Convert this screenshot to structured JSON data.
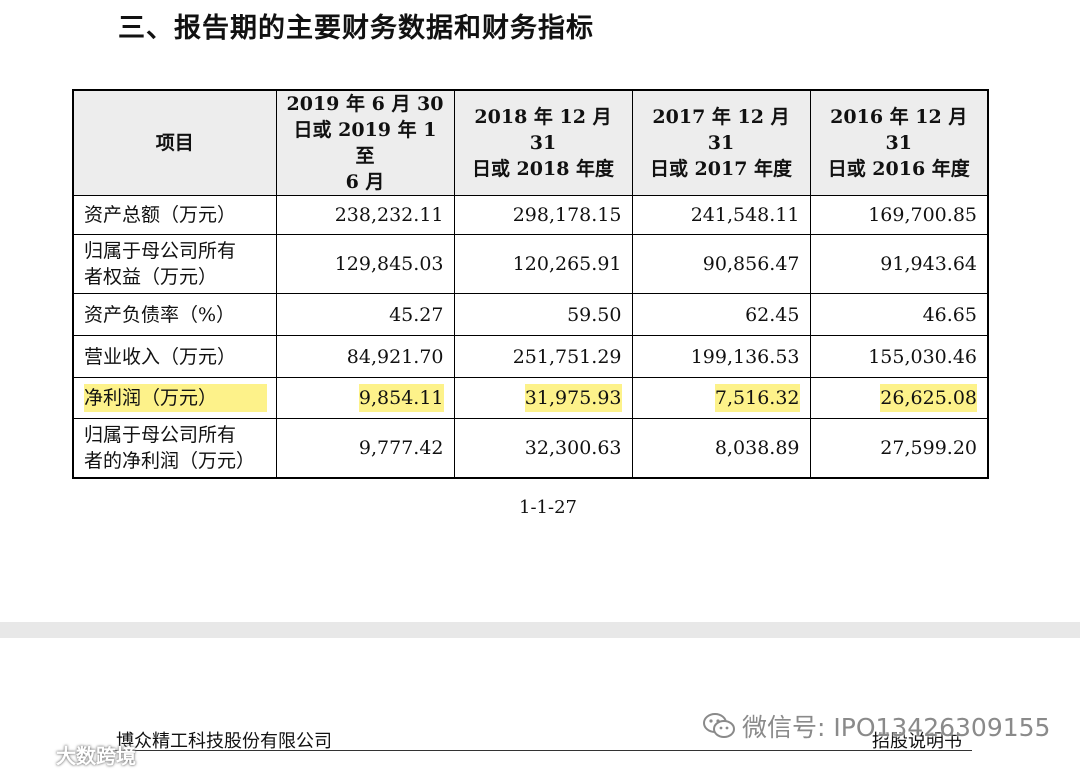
{
  "section_title": "三、报告期的主要财务数据和财务指标",
  "table": {
    "headers": {
      "item": "项目",
      "col1": [
        "2019 年 6 月 30",
        "日或 2019 年 1 至",
        "6 月"
      ],
      "col2": [
        "2018 年 12 月 31",
        "日或 2018 年度"
      ],
      "col3": [
        "2017 年 12 月 31",
        "日或 2017 年度"
      ],
      "col4": [
        "2016 年 12 月 31",
        "日或 2016 年度"
      ]
    },
    "rows": [
      {
        "label": [
          "资产总额（万元）"
        ],
        "values": [
          "238,232.11",
          "298,178.15",
          "241,548.11",
          "169,700.85"
        ]
      },
      {
        "label": [
          "归属于母公司所有",
          "者权益（万元）"
        ],
        "values": [
          "129,845.03",
          "120,265.91",
          "90,856.47",
          "91,943.64"
        ]
      },
      {
        "label": [
          "资产负债率（%）"
        ],
        "values": [
          "45.27",
          "59.50",
          "62.45",
          "46.65"
        ]
      },
      {
        "label": [
          "营业收入（万元）"
        ],
        "values": [
          "84,921.70",
          "251,751.29",
          "199,136.53",
          "155,030.46"
        ]
      },
      {
        "label": [
          "净利润（万元）"
        ],
        "values": [
          "9,854.11",
          "31,975.93",
          "7,516.32",
          "26,625.08"
        ],
        "highlight": true
      },
      {
        "label": [
          "归属于母公司所有",
          "者的净利润（万元）"
        ],
        "values": [
          "9,777.42",
          "32,300.63",
          "8,038.89",
          "27,599.20"
        ]
      }
    ]
  },
  "page_number": "1-1-27",
  "footer": {
    "company": "博众精工科技股份有限公司",
    "doc_type": "招股说明书"
  },
  "watermarks": {
    "wechat_text": "微信号: IPO13426309155",
    "logo_text": "大数跨境",
    "wechat_icon": "wechat-icon",
    "logo_icon": "brand-logo-icon"
  },
  "colors": {
    "highlight": "#fdf28a",
    "header_bg": "#ededed"
  }
}
